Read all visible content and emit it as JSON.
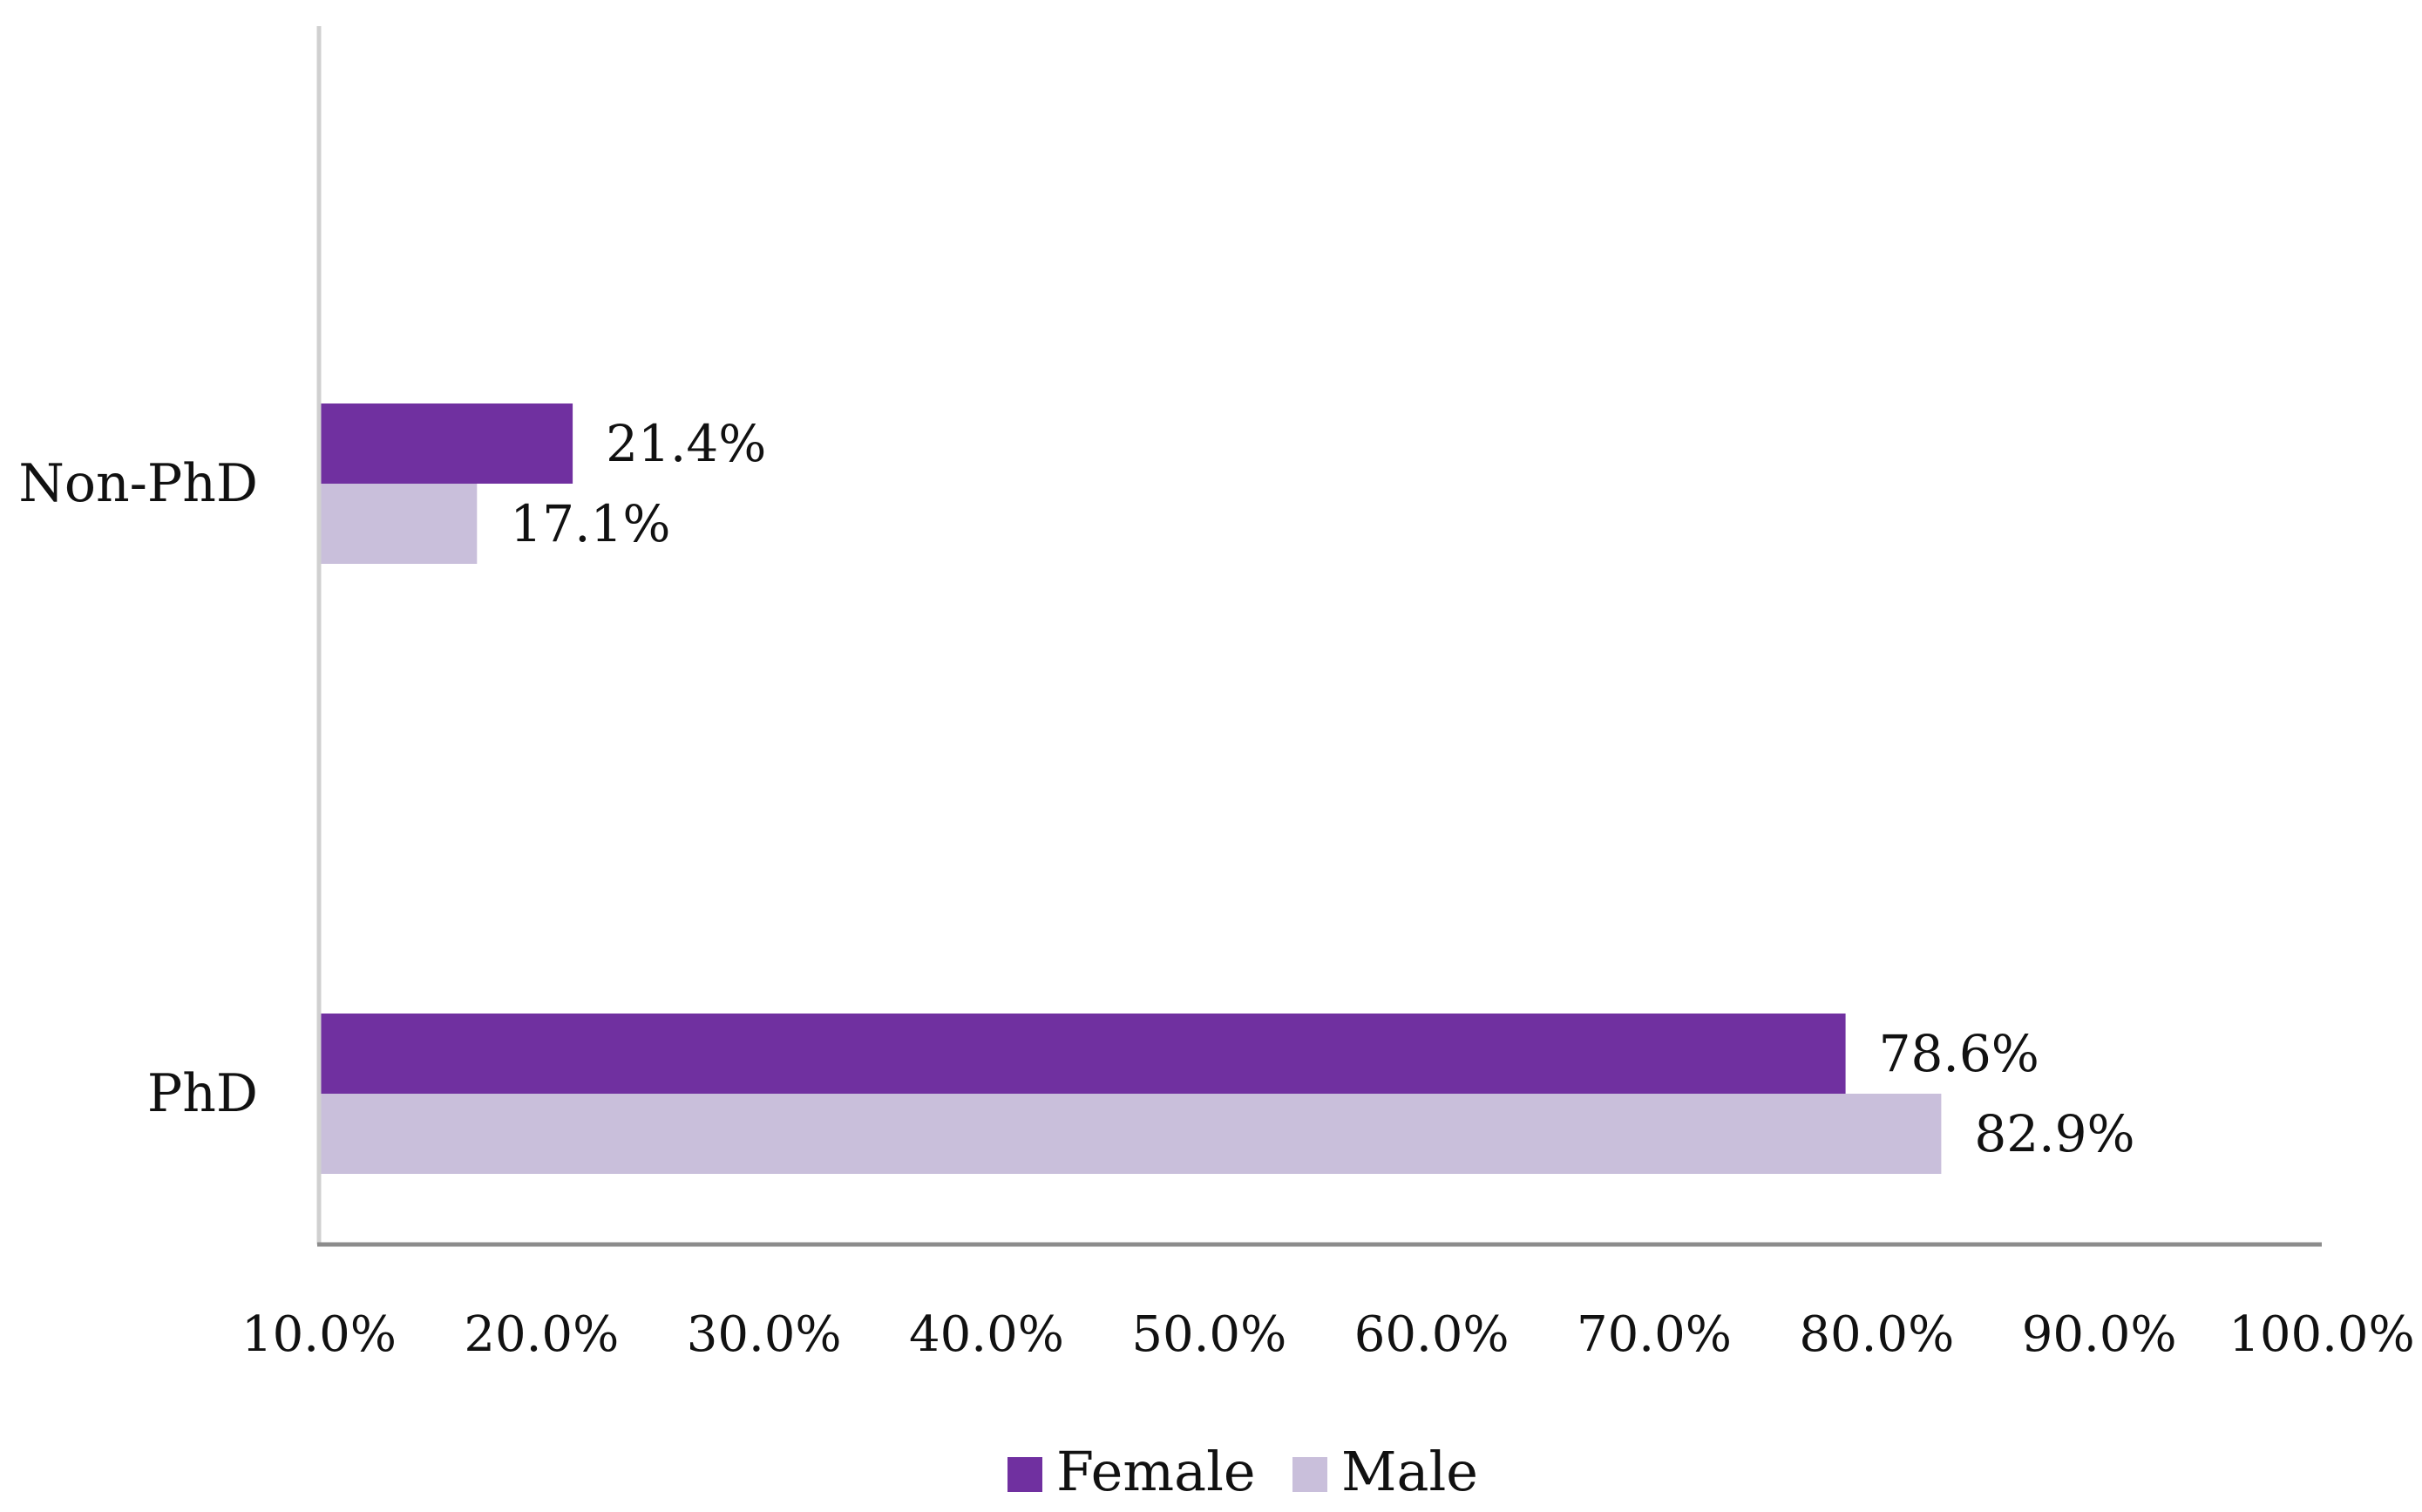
{
  "chart_data": {
    "type": "bar",
    "orientation": "horizontal",
    "categories": [
      "Non-PhD",
      "PhD"
    ],
    "series": [
      {
        "name": "Female",
        "color": "#7030A0",
        "values": [
          21.4,
          78.6
        ],
        "labels": [
          "21.4%",
          "78.6%"
        ]
      },
      {
        "name": "Male",
        "color": "#C9BFDB",
        "values": [
          17.1,
          82.9
        ],
        "labels": [
          "17.1%",
          "82.9%"
        ]
      }
    ],
    "xlim": [
      10,
      100
    ],
    "xticks": [
      10,
      20,
      30,
      40,
      50,
      60,
      70,
      80,
      90,
      100
    ],
    "xtick_labels": [
      "10.0%",
      "20.0%",
      "30.0%",
      "40.0%",
      "50.0%",
      "60.0%",
      "70.0%",
      "80.0%",
      "90.0%",
      "100.0%"
    ],
    "title": "",
    "xlabel": "",
    "ylabel": "",
    "grid": false,
    "legend": {
      "position": "bottom",
      "entries": [
        "Female",
        "Male"
      ]
    }
  }
}
